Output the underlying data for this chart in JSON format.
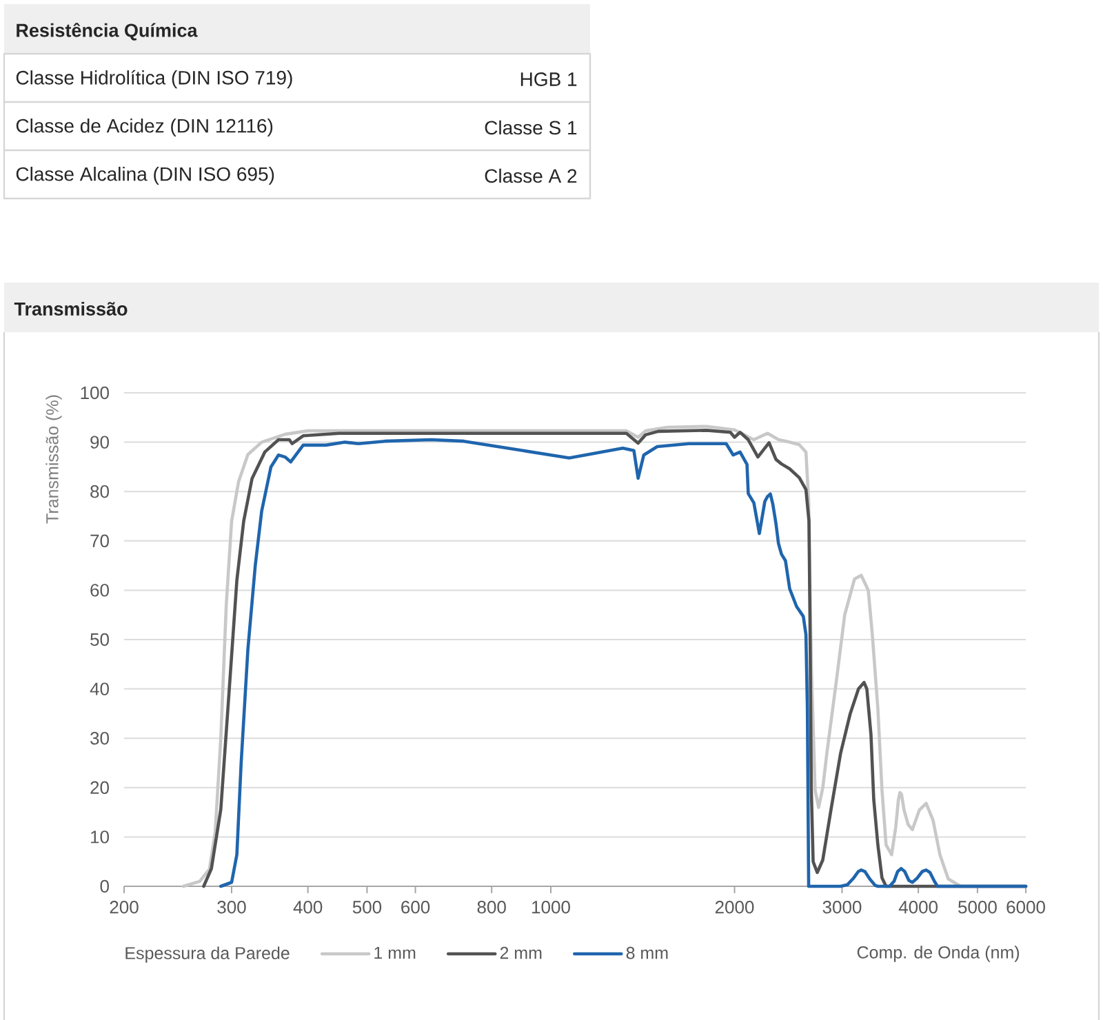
{
  "chart_data": [
    {
      "type": "other",
      "title": "Resistência Química",
      "annotations": [
        "Classe Hidrolítica (DIN ISO 719)",
        "HGB 1",
        "Classe de Acidez (DIN 12116)",
        "Classe S 1",
        "Classe Alcalina (DIN ISO 695)",
        "Classe A 2"
      ]
    },
    {
      "type": "line",
      "title": "Transmissão",
      "xlabel": "Comp. de Onda (nm)",
      "ylabel": "Transmissão (%)",
      "legend_title": "Espessura da Parede",
      "log": "x",
      "xlim": [
        200,
        6000
      ],
      "ylim": [
        0,
        100
      ],
      "xticks": [
        200,
        300,
        400,
        500,
        600,
        800,
        1000,
        2000,
        3000,
        4000,
        5000,
        6000
      ],
      "yticks": [
        0,
        10,
        20,
        30,
        40,
        50,
        60,
        70,
        80,
        90,
        100
      ],
      "grid": "y",
      "legend": "bottom",
      "series": [
        {
          "name": "1 mm",
          "color": "#c8c8c8",
          "x": [
            250,
            266,
            276,
            282,
            288,
            294,
            300,
            308,
            319,
            336,
            367,
            400,
            1000,
            1330,
            1390,
            1430,
            1550,
            1800,
            2000,
            2074,
            2150,
            2266,
            2362,
            2462,
            2553,
            2618,
            2645,
            2671,
            2710,
            2746,
            2790,
            2833,
            2939,
            3030,
            3145,
            3226,
            3312,
            3363,
            3434,
            3488,
            3542,
            3617,
            3674,
            3710,
            3732,
            3755,
            3790,
            3850,
            3912,
            4014,
            4120,
            4228,
            4340,
            4478,
            4692,
            6000
          ],
          "values": [
            0,
            1,
            3.5,
            11,
            30,
            57,
            74,
            82,
            87.5,
            90,
            91.6,
            92.3,
            92.3,
            92.3,
            91,
            92.3,
            93,
            93.2,
            92.5,
            91.5,
            90.5,
            91.8,
            90.5,
            90,
            89.5,
            88,
            78,
            45,
            19.5,
            16,
            20,
            27,
            42,
            55,
            62.3,
            63,
            60,
            51,
            36,
            19.5,
            8.4,
            6.4,
            12,
            17.5,
            19,
            18.6,
            15.5,
            12.5,
            11.5,
            15.4,
            16.8,
            13.4,
            6.4,
            1.5,
            0,
            0
          ]
        },
        {
          "name": "2 mm",
          "color": "#525252",
          "x": [
            270,
            278,
            288,
            297,
            306,
            314,
            324,
            340,
            358,
            373,
            377,
            393,
            450,
            1000,
            1330,
            1390,
            1430,
            1500,
            1800,
            1969,
            2000,
            2042,
            2106,
            2184,
            2278,
            2338,
            2387,
            2462,
            2553,
            2618,
            2648,
            2660,
            2671,
            2690,
            2732,
            2789,
            2878,
            2984,
            3094,
            3192,
            3260,
            3294,
            3346,
            3381,
            3434,
            3488,
            3542,
            6000
          ],
          "values": [
            0,
            3.6,
            15.6,
            39,
            62,
            74,
            82.6,
            88,
            90.5,
            90.5,
            89.7,
            91.3,
            91.8,
            91.8,
            91.8,
            89.8,
            91.5,
            92.2,
            92.4,
            92,
            91,
            92,
            90.5,
            87,
            89.9,
            86.5,
            85.6,
            84.6,
            82.8,
            80.4,
            74,
            50,
            20,
            5,
            2.8,
            5.3,
            15.6,
            27,
            35,
            40,
            41.3,
            40,
            30.7,
            17.6,
            8.4,
            1.7,
            0,
            0
          ]
        },
        {
          "name": "8 mm",
          "color": "#1f65ad",
          "x": [
            288,
            300,
            306,
            311,
            319,
            328,
            336,
            348,
            358,
            367,
            375,
            393,
            428,
            460,
            484,
            535,
            637,
            720,
            900,
            1072,
            1312,
            1368,
            1390,
            1420,
            1494,
            1684,
            1898,
            1938,
            1990,
            2042,
            2096,
            2106,
            2151,
            2196,
            2242,
            2265,
            2289,
            2310,
            2338,
            2360,
            2387,
            2423,
            2462,
            2527,
            2592,
            2618,
            2632,
            2645,
            2984,
            3060,
            3130,
            3190,
            3226,
            3270,
            3330,
            3398,
            3434,
            3590,
            3650,
            3700,
            3750,
            3800,
            3860,
            3912,
            3980,
            4060,
            4120,
            4180,
            4250,
            4300,
            6000
          ],
          "values": [
            0,
            0.8,
            6.4,
            25,
            48,
            65,
            76,
            85,
            87.4,
            87,
            86,
            89.4,
            89.4,
            90,
            89.7,
            90.2,
            90.5,
            90.2,
            88.3,
            86.8,
            88.8,
            88.3,
            82.7,
            87.4,
            89.1,
            89.7,
            89.7,
            89.7,
            87.4,
            88,
            85.5,
            79.6,
            77.7,
            71.5,
            78,
            79,
            79.5,
            77.5,
            73.5,
            69.5,
            67.3,
            66,
            60.3,
            56.7,
            54.7,
            51,
            36,
            0,
            0,
            0.3,
            1.6,
            3,
            3.3,
            3,
            1.5,
            0.2,
            0,
            0,
            1,
            3,
            3.6,
            3,
            1.2,
            0.8,
            1.6,
            3,
            3.3,
            2.8,
            1,
            0,
            0
          ]
        }
      ]
    }
  ]
}
